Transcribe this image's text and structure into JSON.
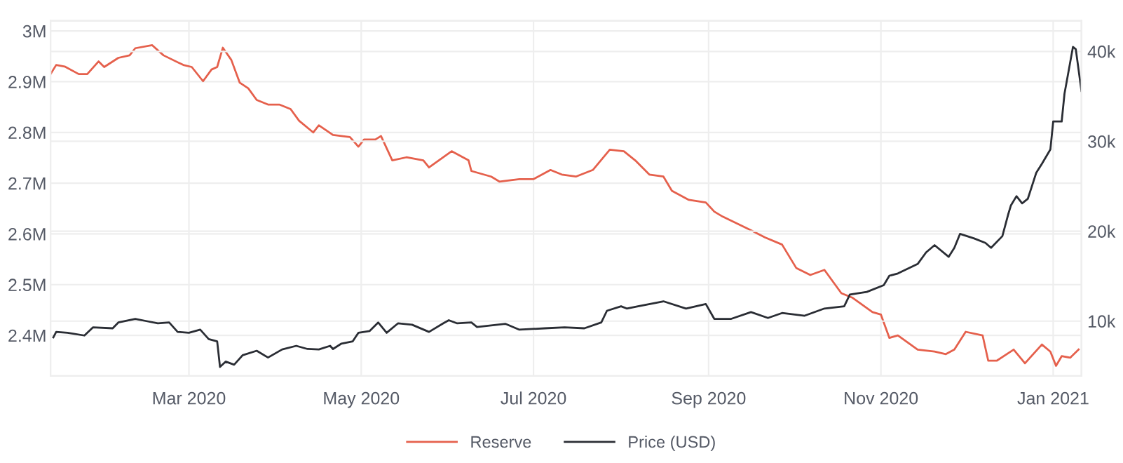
{
  "chart_data": {
    "type": "line",
    "legend": "bottom",
    "grid": true,
    "line_style": "solid",
    "marker": "none",
    "xlim": [
      "2020-01-12",
      "2021-01-11"
    ],
    "xticks": [
      {
        "value": "2020-03-01",
        "label": "Mar 2020"
      },
      {
        "value": "2020-05-01",
        "label": "May 2020"
      },
      {
        "value": "2020-07-01",
        "label": "Jul 2020"
      },
      {
        "value": "2020-09-01",
        "label": "Sep 2020"
      },
      {
        "value": "2020-11-01",
        "label": "Nov 2020"
      },
      {
        "value": "2021-01-01",
        "label": "Jan 2021"
      }
    ],
    "ylim": [
      2320000,
      3020000
    ],
    "yticks": [
      {
        "value": 2400000,
        "label": "2.4M"
      },
      {
        "value": 2500000,
        "label": "2.5M"
      },
      {
        "value": 2600000,
        "label": "2.6M"
      },
      {
        "value": 2700000,
        "label": "2.7M"
      },
      {
        "value": 2800000,
        "label": "2.8M"
      },
      {
        "value": 2900000,
        "label": "2.9M"
      },
      {
        "value": 3000000,
        "label": "3M"
      }
    ],
    "y2lim": [
      3900,
      43400
    ],
    "y2ticks": [
      {
        "value": 10000,
        "label": "10k"
      },
      {
        "value": 20000,
        "label": "20k"
      },
      {
        "value": 30000,
        "label": "30k"
      },
      {
        "value": 40000,
        "label": "40k"
      }
    ],
    "series": [
      {
        "name": "Reserve",
        "color": "#e5604c",
        "axis": "y",
        "x": [
          "2020-01-12",
          "2020-01-14",
          "2020-01-17",
          "2020-01-22",
          "2020-01-25",
          "2020-01-29",
          "2020-01-31",
          "2020-02-05",
          "2020-02-09",
          "2020-02-11",
          "2020-02-17",
          "2020-02-21",
          "2020-02-28",
          "2020-03-02",
          "2020-03-06",
          "2020-03-09",
          "2020-03-11",
          "2020-03-13",
          "2020-03-16",
          "2020-03-19",
          "2020-03-22",
          "2020-03-25",
          "2020-03-29",
          "2020-04-02",
          "2020-04-06",
          "2020-04-09",
          "2020-04-14",
          "2020-04-16",
          "2020-04-21",
          "2020-04-27",
          "2020-04-30",
          "2020-05-02",
          "2020-05-06",
          "2020-05-08",
          "2020-05-12",
          "2020-05-17",
          "2020-05-23",
          "2020-05-25",
          "2020-06-02",
          "2020-06-08",
          "2020-06-09",
          "2020-06-16",
          "2020-06-19",
          "2020-06-26",
          "2020-07-01",
          "2020-07-07",
          "2020-07-11",
          "2020-07-16",
          "2020-07-22",
          "2020-07-28",
          "2020-08-02",
          "2020-08-06",
          "2020-08-11",
          "2020-08-16",
          "2020-08-19",
          "2020-08-25",
          "2020-08-31",
          "2020-09-03",
          "2020-09-06",
          "2020-09-16",
          "2020-09-21",
          "2020-09-27",
          "2020-10-02",
          "2020-10-07",
          "2020-10-12",
          "2020-10-18",
          "2020-10-22",
          "2020-10-29",
          "2020-11-01",
          "2020-11-04",
          "2020-11-07",
          "2020-11-14",
          "2020-11-20",
          "2020-11-24",
          "2020-11-27",
          "2020-12-01",
          "2020-12-07",
          "2020-12-09",
          "2020-12-12",
          "2020-12-18",
          "2020-12-22",
          "2020-12-28",
          "2020-12-31",
          "2021-01-02",
          "2021-01-04",
          "2021-01-07",
          "2021-01-10"
        ],
        "values": [
          2915000,
          2933000,
          2930000,
          2915000,
          2915000,
          2940000,
          2929000,
          2947000,
          2952000,
          2966000,
          2972000,
          2952000,
          2933000,
          2929000,
          2901000,
          2924000,
          2929000,
          2967000,
          2943000,
          2898000,
          2887000,
          2864000,
          2855000,
          2855000,
          2846000,
          2823000,
          2800000,
          2814000,
          2795000,
          2791000,
          2772000,
          2786000,
          2786000,
          2793000,
          2745000,
          2751000,
          2745000,
          2731000,
          2763000,
          2745000,
          2724000,
          2713000,
          2703000,
          2708000,
          2708000,
          2726000,
          2717000,
          2713000,
          2726000,
          2766000,
          2763000,
          2745000,
          2717000,
          2713000,
          2685000,
          2667000,
          2662000,
          2644000,
          2634000,
          2607000,
          2593000,
          2579000,
          2533000,
          2519000,
          2529000,
          2483000,
          2474000,
          2446000,
          2441000,
          2395000,
          2400000,
          2372000,
          2368000,
          2363000,
          2372000,
          2407000,
          2400000,
          2350000,
          2350000,
          2372000,
          2345000,
          2382000,
          2368000,
          2340000,
          2359000,
          2356000,
          2372000
        ]
      },
      {
        "name": "Price (USD)",
        "color": "#2a2d34",
        "axis": "y2",
        "x": [
          "2020-01-13",
          "2020-01-14",
          "2020-01-18",
          "2020-01-24",
          "2020-01-27",
          "2020-02-03",
          "2020-02-05",
          "2020-02-11",
          "2020-02-15",
          "2020-02-19",
          "2020-02-23",
          "2020-02-26",
          "2020-03-01",
          "2020-03-05",
          "2020-03-08",
          "2020-03-11",
          "2020-03-12",
          "2020-03-14",
          "2020-03-17",
          "2020-03-20",
          "2020-03-25",
          "2020-03-29",
          "2020-04-03",
          "2020-04-08",
          "2020-04-12",
          "2020-04-16",
          "2020-04-20",
          "2020-04-21",
          "2020-04-24",
          "2020-04-28",
          "2020-04-30",
          "2020-05-04",
          "2020-05-07",
          "2020-05-10",
          "2020-05-14",
          "2020-05-19",
          "2020-05-25",
          "2020-05-30",
          "2020-06-01",
          "2020-06-04",
          "2020-06-09",
          "2020-06-11",
          "2020-06-21",
          "2020-06-26",
          "2020-07-05",
          "2020-07-12",
          "2020-07-19",
          "2020-07-25",
          "2020-07-27",
          "2020-08-01",
          "2020-08-03",
          "2020-08-07",
          "2020-08-16",
          "2020-08-24",
          "2020-08-31",
          "2020-09-03",
          "2020-09-09",
          "2020-09-16",
          "2020-09-22",
          "2020-09-27",
          "2020-10-05",
          "2020-10-12",
          "2020-10-19",
          "2020-10-21",
          "2020-10-27",
          "2020-11-02",
          "2020-11-04",
          "2020-11-07",
          "2020-11-14",
          "2020-11-17",
          "2020-11-20",
          "2020-11-25",
          "2020-11-27",
          "2020-11-29",
          "2020-12-04",
          "2020-12-08",
          "2020-12-10",
          "2020-12-14",
          "2020-12-16",
          "2020-12-17",
          "2020-12-19",
          "2020-12-21",
          "2020-12-23",
          "2020-12-26",
          "2020-12-28",
          "2020-12-31",
          "2021-01-01",
          "2021-01-04",
          "2021-01-05",
          "2021-01-08",
          "2021-01-09",
          "2021-01-11"
        ],
        "values": [
          8200,
          8800,
          8700,
          8400,
          9300,
          9200,
          9850,
          10250,
          10000,
          9750,
          9850,
          8800,
          8700,
          9050,
          8000,
          7750,
          4900,
          5500,
          5150,
          6200,
          6700,
          5950,
          6850,
          7250,
          6900,
          6850,
          7250,
          6900,
          7500,
          7750,
          8700,
          8900,
          9850,
          8700,
          9750,
          9600,
          8800,
          9750,
          10100,
          9750,
          9850,
          9350,
          9700,
          9050,
          9200,
          9300,
          9200,
          9850,
          11150,
          11650,
          11400,
          11650,
          12200,
          11400,
          11900,
          10250,
          10250,
          11000,
          10350,
          10900,
          10600,
          11400,
          11650,
          12950,
          13250,
          14000,
          15050,
          15300,
          16350,
          17650,
          18450,
          17150,
          18150,
          19700,
          19200,
          18700,
          18150,
          19450,
          21800,
          22850,
          23900,
          23100,
          23600,
          26500,
          27500,
          29100,
          32200,
          32200,
          35300,
          40500,
          40250,
          35600
        ]
      }
    ]
  }
}
